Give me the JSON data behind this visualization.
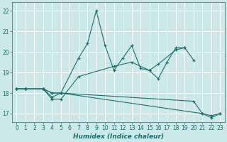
{
  "xlabel": "Humidex (Indice chaleur)",
  "bg_color": "#cce8e8",
  "grid_color": "#ffffff",
  "line_color": "#1a6e6e",
  "xlim": [
    -0.5,
    23.5
  ],
  "ylim": [
    16.6,
    22.4
  ],
  "yticks": [
    17,
    18,
    19,
    20,
    21,
    22
  ],
  "xticks": [
    0,
    1,
    2,
    3,
    4,
    5,
    6,
    7,
    8,
    9,
    10,
    11,
    12,
    13,
    14,
    15,
    16,
    17,
    18,
    19,
    20,
    21,
    22,
    23
  ],
  "series": [
    {
      "x": [
        0,
        1,
        3,
        4,
        5,
        7,
        8,
        9,
        10,
        11,
        12,
        13,
        14,
        15,
        16,
        17,
        18,
        19,
        20
      ],
      "y": [
        18.2,
        18.2,
        18.2,
        17.8,
        18.0,
        19.7,
        20.4,
        22.0,
        20.3,
        19.1,
        19.7,
        20.3,
        19.2,
        19.1,
        18.7,
        19.5,
        20.2,
        20.2,
        19.6
      ]
    },
    {
      "x": [
        0,
        1,
        3,
        4,
        5,
        7,
        11,
        13,
        15,
        16,
        18,
        19
      ],
      "y": [
        18.2,
        18.2,
        18.2,
        17.7,
        17.7,
        18.8,
        19.3,
        19.5,
        19.1,
        19.4,
        20.1,
        20.2
      ]
    },
    {
      "x": [
        0,
        1,
        3,
        4,
        5,
        20,
        21,
        22,
        23
      ],
      "y": [
        18.2,
        18.2,
        18.2,
        18.0,
        18.0,
        17.6,
        17.0,
        16.9,
        17.0
      ]
    },
    {
      "x": [
        0,
        1,
        3,
        4,
        5,
        21,
        22,
        23
      ],
      "y": [
        18.2,
        18.2,
        18.2,
        18.0,
        18.0,
        17.0,
        16.8,
        17.0
      ]
    }
  ]
}
